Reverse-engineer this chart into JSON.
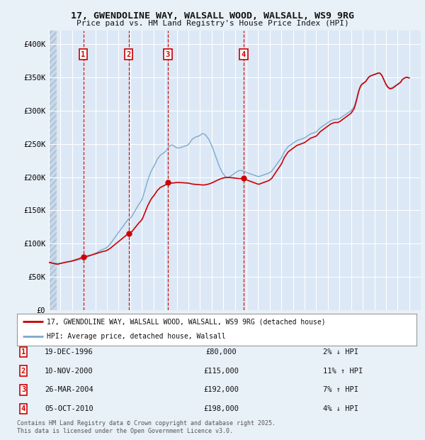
{
  "title1": "17, GWENDOLINE WAY, WALSALL WOOD, WALSALL, WS9 9RG",
  "title2": "Price paid vs. HM Land Registry's House Price Index (HPI)",
  "ylabel_ticks": [
    "£0",
    "£50K",
    "£100K",
    "£150K",
    "£200K",
    "£250K",
    "£300K",
    "£350K",
    "£400K"
  ],
  "ytick_values": [
    0,
    50000,
    100000,
    150000,
    200000,
    250000,
    300000,
    350000,
    400000
  ],
  "ylim": [
    0,
    420000
  ],
  "xlim_start": 1994.0,
  "xlim_end": 2025.99,
  "bg_color": "#e8f0f8",
  "plot_bg_color": "#dce8f5",
  "hatch_end": 1994.7,
  "grid_color": "#ffffff",
  "hpi_line_color": "#7aaad0",
  "price_line_color": "#cc0000",
  "sale_dot_color": "#cc0000",
  "dashed_line_color": "#cc0000",
  "legend_label_price": "17, GWENDOLINE WAY, WALSALL WOOD, WALSALL, WS9 9RG (detached house)",
  "legend_label_hpi": "HPI: Average price, detached house, Walsall",
  "sales": [
    {
      "num": 1,
      "date": "19-DEC-1996",
      "year": 1996.96,
      "price": 80000,
      "pct": "2%",
      "dir": "↓"
    },
    {
      "num": 2,
      "date": "10-NOV-2000",
      "year": 2000.86,
      "price": 115000,
      "pct": "11%",
      "dir": "↑"
    },
    {
      "num": 3,
      "date": "26-MAR-2004",
      "year": 2004.23,
      "price": 192000,
      "pct": "7%",
      "dir": "↑"
    },
    {
      "num": 4,
      "date": "05-OCT-2010",
      "year": 2010.76,
      "price": 198000,
      "pct": "4%",
      "dir": "↓"
    }
  ],
  "footnote1": "Contains HM Land Registry data © Crown copyright and database right 2025.",
  "footnote2": "This data is licensed under the Open Government Licence v3.0.",
  "hpi_data": [
    [
      1994.0,
      72000
    ],
    [
      1994.083,
      71800
    ],
    [
      1994.167,
      71500
    ],
    [
      1994.25,
      71200
    ],
    [
      1994.333,
      71000
    ],
    [
      1994.417,
      70800
    ],
    [
      1994.5,
      70500
    ],
    [
      1994.583,
      70300
    ],
    [
      1994.667,
      70100
    ],
    [
      1994.75,
      70000
    ],
    [
      1994.833,
      70200
    ],
    [
      1994.917,
      70500
    ],
    [
      1995.0,
      70800
    ],
    [
      1995.083,
      71000
    ],
    [
      1995.167,
      71200
    ],
    [
      1995.25,
      71500
    ],
    [
      1995.333,
      71800
    ],
    [
      1995.417,
      72000
    ],
    [
      1995.5,
      72200
    ],
    [
      1995.583,
      72400
    ],
    [
      1995.667,
      72600
    ],
    [
      1995.75,
      72800
    ],
    [
      1995.833,
      73000
    ],
    [
      1995.917,
      73200
    ],
    [
      1996.0,
      73500
    ],
    [
      1996.083,
      73800
    ],
    [
      1996.167,
      74100
    ],
    [
      1996.25,
      74500
    ],
    [
      1996.333,
      74800
    ],
    [
      1996.417,
      75100
    ],
    [
      1996.5,
      75500
    ],
    [
      1996.583,
      75800
    ],
    [
      1996.667,
      76200
    ],
    [
      1996.75,
      76600
    ],
    [
      1996.833,
      77000
    ],
    [
      1996.917,
      77400
    ],
    [
      1997.0,
      77900
    ],
    [
      1997.083,
      78400
    ],
    [
      1997.167,
      78900
    ],
    [
      1997.25,
      79500
    ],
    [
      1997.333,
      80100
    ],
    [
      1997.417,
      80700
    ],
    [
      1997.5,
      81300
    ],
    [
      1997.583,
      82000
    ],
    [
      1997.667,
      82700
    ],
    [
      1997.75,
      83400
    ],
    [
      1997.833,
      84100
    ],
    [
      1997.917,
      84800
    ],
    [
      1998.0,
      85600
    ],
    [
      1998.083,
      86400
    ],
    [
      1998.167,
      87200
    ],
    [
      1998.25,
      88000
    ],
    [
      1998.333,
      88800
    ],
    [
      1998.417,
      89600
    ],
    [
      1998.5,
      90400
    ],
    [
      1998.583,
      91000
    ],
    [
      1998.667,
      91600
    ],
    [
      1998.75,
      92200
    ],
    [
      1998.833,
      92800
    ],
    [
      1998.917,
      93400
    ],
    [
      1999.0,
      94500
    ],
    [
      1999.083,
      96000
    ],
    [
      1999.167,
      97500
    ],
    [
      1999.25,
      99000
    ],
    [
      1999.333,
      101000
    ],
    [
      1999.417,
      103000
    ],
    [
      1999.5,
      105000
    ],
    [
      1999.583,
      107000
    ],
    [
      1999.667,
      109000
    ],
    [
      1999.75,
      111000
    ],
    [
      1999.833,
      113000
    ],
    [
      1999.917,
      115000
    ],
    [
      2000.0,
      117000
    ],
    [
      2000.083,
      119000
    ],
    [
      2000.167,
      121000
    ],
    [
      2000.25,
      123000
    ],
    [
      2000.333,
      125000
    ],
    [
      2000.417,
      127000
    ],
    [
      2000.5,
      129000
    ],
    [
      2000.583,
      131000
    ],
    [
      2000.667,
      133000
    ],
    [
      2000.75,
      135000
    ],
    [
      2000.833,
      136500
    ],
    [
      2000.917,
      137500
    ],
    [
      2001.0,
      138500
    ],
    [
      2001.083,
      140000
    ],
    [
      2001.167,
      142000
    ],
    [
      2001.25,
      144500
    ],
    [
      2001.333,
      147000
    ],
    [
      2001.417,
      149500
    ],
    [
      2001.5,
      152000
    ],
    [
      2001.583,
      154500
    ],
    [
      2001.667,
      157000
    ],
    [
      2001.75,
      159500
    ],
    [
      2001.833,
      161500
    ],
    [
      2001.917,
      163500
    ],
    [
      2002.0,
      166000
    ],
    [
      2002.083,
      170000
    ],
    [
      2002.167,
      175000
    ],
    [
      2002.25,
      180000
    ],
    [
      2002.333,
      185000
    ],
    [
      2002.417,
      190000
    ],
    [
      2002.5,
      195000
    ],
    [
      2002.583,
      199000
    ],
    [
      2002.667,
      203000
    ],
    [
      2002.75,
      207000
    ],
    [
      2002.833,
      210000
    ],
    [
      2002.917,
      213000
    ],
    [
      2003.0,
      215000
    ],
    [
      2003.083,
      218000
    ],
    [
      2003.167,
      221000
    ],
    [
      2003.25,
      224000
    ],
    [
      2003.333,
      227000
    ],
    [
      2003.417,
      229000
    ],
    [
      2003.5,
      231000
    ],
    [
      2003.583,
      233000
    ],
    [
      2003.667,
      234000
    ],
    [
      2003.75,
      235000
    ],
    [
      2003.833,
      236000
    ],
    [
      2003.917,
      237000
    ],
    [
      2004.0,
      238000
    ],
    [
      2004.083,
      240000
    ],
    [
      2004.167,
      242000
    ],
    [
      2004.25,
      244000
    ],
    [
      2004.333,
      246000
    ],
    [
      2004.417,
      247000
    ],
    [
      2004.5,
      248000
    ],
    [
      2004.583,
      248500
    ],
    [
      2004.667,
      248000
    ],
    [
      2004.75,
      247000
    ],
    [
      2004.833,
      246000
    ],
    [
      2004.917,
      245000
    ],
    [
      2005.0,
      244000
    ],
    [
      2005.083,
      244000
    ],
    [
      2005.167,
      244000
    ],
    [
      2005.25,
      244000
    ],
    [
      2005.333,
      244500
    ],
    [
      2005.417,
      245000
    ],
    [
      2005.5,
      245500
    ],
    [
      2005.583,
      246000
    ],
    [
      2005.667,
      246500
    ],
    [
      2005.75,
      247000
    ],
    [
      2005.833,
      247500
    ],
    [
      2005.917,
      248000
    ],
    [
      2006.0,
      249000
    ],
    [
      2006.083,
      251000
    ],
    [
      2006.167,
      253000
    ],
    [
      2006.25,
      255000
    ],
    [
      2006.333,
      257000
    ],
    [
      2006.417,
      258000
    ],
    [
      2006.5,
      259000
    ],
    [
      2006.583,
      260000
    ],
    [
      2006.667,
      260500
    ],
    [
      2006.75,
      261000
    ],
    [
      2006.833,
      261500
    ],
    [
      2006.917,
      262000
    ],
    [
      2007.0,
      263000
    ],
    [
      2007.083,
      264000
    ],
    [
      2007.167,
      265000
    ],
    [
      2007.25,
      265500
    ],
    [
      2007.333,
      265000
    ],
    [
      2007.417,
      264000
    ],
    [
      2007.5,
      263000
    ],
    [
      2007.583,
      261000
    ],
    [
      2007.667,
      259000
    ],
    [
      2007.75,
      257000
    ],
    [
      2007.833,
      254000
    ],
    [
      2007.917,
      251000
    ],
    [
      2008.0,
      248000
    ],
    [
      2008.083,
      244000
    ],
    [
      2008.167,
      240000
    ],
    [
      2008.25,
      236000
    ],
    [
      2008.333,
      232000
    ],
    [
      2008.417,
      228000
    ],
    [
      2008.5,
      224000
    ],
    [
      2008.583,
      220000
    ],
    [
      2008.667,
      216000
    ],
    [
      2008.75,
      213000
    ],
    [
      2008.833,
      210000
    ],
    [
      2008.917,
      207000
    ],
    [
      2009.0,
      205000
    ],
    [
      2009.083,
      203000
    ],
    [
      2009.167,
      201000
    ],
    [
      2009.25,
      200000
    ],
    [
      2009.333,
      199000
    ],
    [
      2009.417,
      199000
    ],
    [
      2009.5,
      200000
    ],
    [
      2009.583,
      201000
    ],
    [
      2009.667,
      202000
    ],
    [
      2009.75,
      203000
    ],
    [
      2009.833,
      204000
    ],
    [
      2009.917,
      205000
    ],
    [
      2010.0,
      206000
    ],
    [
      2010.083,
      207000
    ],
    [
      2010.167,
      208000
    ],
    [
      2010.25,
      209000
    ],
    [
      2010.333,
      209500
    ],
    [
      2010.417,
      210000
    ],
    [
      2010.5,
      210000
    ],
    [
      2010.583,
      210000
    ],
    [
      2010.667,
      209500
    ],
    [
      2010.75,
      209000
    ],
    [
      2010.833,
      208500
    ],
    [
      2010.917,
      208000
    ],
    [
      2011.0,
      207000
    ],
    [
      2011.083,
      206500
    ],
    [
      2011.167,
      206000
    ],
    [
      2011.25,
      205500
    ],
    [
      2011.333,
      205000
    ],
    [
      2011.417,
      204500
    ],
    [
      2011.5,
      204000
    ],
    [
      2011.583,
      203500
    ],
    [
      2011.667,
      203000
    ],
    [
      2011.75,
      202500
    ],
    [
      2011.833,
      202000
    ],
    [
      2011.917,
      201500
    ],
    [
      2012.0,
      201000
    ],
    [
      2012.083,
      201000
    ],
    [
      2012.167,
      201500
    ],
    [
      2012.25,
      202000
    ],
    [
      2012.333,
      202500
    ],
    [
      2012.417,
      203000
    ],
    [
      2012.5,
      203500
    ],
    [
      2012.583,
      204000
    ],
    [
      2012.667,
      204500
    ],
    [
      2012.75,
      205000
    ],
    [
      2012.833,
      205500
    ],
    [
      2012.917,
      206000
    ],
    [
      2013.0,
      207000
    ],
    [
      2013.083,
      208000
    ],
    [
      2013.167,
      209000
    ],
    [
      2013.25,
      211000
    ],
    [
      2013.333,
      213000
    ],
    [
      2013.417,
      215000
    ],
    [
      2013.5,
      217000
    ],
    [
      2013.583,
      219000
    ],
    [
      2013.667,
      221000
    ],
    [
      2013.75,
      223000
    ],
    [
      2013.833,
      225000
    ],
    [
      2013.917,
      227000
    ],
    [
      2014.0,
      229000
    ],
    [
      2014.083,
      232000
    ],
    [
      2014.167,
      235000
    ],
    [
      2014.25,
      238000
    ],
    [
      2014.333,
      240000
    ],
    [
      2014.417,
      242000
    ],
    [
      2014.5,
      244000
    ],
    [
      2014.583,
      246000
    ],
    [
      2014.667,
      247000
    ],
    [
      2014.75,
      248000
    ],
    [
      2014.833,
      249000
    ],
    [
      2014.917,
      250000
    ],
    [
      2015.0,
      251000
    ],
    [
      2015.083,
      252000
    ],
    [
      2015.167,
      253000
    ],
    [
      2015.25,
      254000
    ],
    [
      2015.333,
      255000
    ],
    [
      2015.417,
      255500
    ],
    [
      2015.5,
      256000
    ],
    [
      2015.583,
      256500
    ],
    [
      2015.667,
      257000
    ],
    [
      2015.75,
      257500
    ],
    [
      2015.833,
      258000
    ],
    [
      2015.917,
      258500
    ],
    [
      2016.0,
      259000
    ],
    [
      2016.083,
      260000
    ],
    [
      2016.167,
      261000
    ],
    [
      2016.25,
      262000
    ],
    [
      2016.333,
      263000
    ],
    [
      2016.417,
      264000
    ],
    [
      2016.5,
      265000
    ],
    [
      2016.583,
      265500
    ],
    [
      2016.667,
      266000
    ],
    [
      2016.75,
      266500
    ],
    [
      2016.833,
      267000
    ],
    [
      2016.917,
      267500
    ],
    [
      2017.0,
      268000
    ],
    [
      2017.083,
      269500
    ],
    [
      2017.167,
      271000
    ],
    [
      2017.25,
      272500
    ],
    [
      2017.333,
      274000
    ],
    [
      2017.417,
      275000
    ],
    [
      2017.5,
      276000
    ],
    [
      2017.583,
      277000
    ],
    [
      2017.667,
      278000
    ],
    [
      2017.75,
      279000
    ],
    [
      2017.833,
      280000
    ],
    [
      2017.917,
      281000
    ],
    [
      2018.0,
      282000
    ],
    [
      2018.083,
      283000
    ],
    [
      2018.167,
      284000
    ],
    [
      2018.25,
      285000
    ],
    [
      2018.333,
      285500
    ],
    [
      2018.417,
      286000
    ],
    [
      2018.5,
      286500
    ],
    [
      2018.583,
      287000
    ],
    [
      2018.667,
      287000
    ],
    [
      2018.75,
      287000
    ],
    [
      2018.833,
      287000
    ],
    [
      2018.917,
      287500
    ],
    [
      2019.0,
      288000
    ],
    [
      2019.083,
      289000
    ],
    [
      2019.167,
      290000
    ],
    [
      2019.25,
      291000
    ],
    [
      2019.333,
      292000
    ],
    [
      2019.417,
      293000
    ],
    [
      2019.5,
      294000
    ],
    [
      2019.583,
      295000
    ],
    [
      2019.667,
      296000
    ],
    [
      2019.75,
      297000
    ],
    [
      2019.833,
      298000
    ],
    [
      2019.917,
      299000
    ],
    [
      2020.0,
      300000
    ],
    [
      2020.083,
      302000
    ],
    [
      2020.167,
      304000
    ],
    [
      2020.25,
      306000
    ],
    [
      2020.333,
      310000
    ],
    [
      2020.417,
      315000
    ],
    [
      2020.5,
      320000
    ],
    [
      2020.583,
      326000
    ],
    [
      2020.667,
      331000
    ],
    [
      2020.75,
      335000
    ],
    [
      2020.833,
      338000
    ],
    [
      2020.917,
      340000
    ],
    [
      2021.0,
      341000
    ],
    [
      2021.083,
      342000
    ],
    [
      2021.167,
      343000
    ],
    [
      2021.25,
      344000
    ],
    [
      2021.333,
      346000
    ],
    [
      2021.417,
      348000
    ],
    [
      2021.5,
      350000
    ],
    [
      2021.583,
      351000
    ],
    [
      2021.667,
      352000
    ],
    [
      2021.75,
      352500
    ],
    [
      2021.833,
      353000
    ],
    [
      2021.917,
      353500
    ],
    [
      2022.0,
      354000
    ],
    [
      2022.083,
      354500
    ],
    [
      2022.167,
      355000
    ],
    [
      2022.25,
      355500
    ],
    [
      2022.333,
      356000
    ],
    [
      2022.417,
      356000
    ],
    [
      2022.5,
      355500
    ],
    [
      2022.583,
      354000
    ],
    [
      2022.667,
      352000
    ],
    [
      2022.75,
      349000
    ],
    [
      2022.833,
      346000
    ],
    [
      2022.917,
      343000
    ],
    [
      2023.0,
      340000
    ],
    [
      2023.083,
      338000
    ],
    [
      2023.167,
      336000
    ],
    [
      2023.25,
      335000
    ],
    [
      2023.333,
      334000
    ],
    [
      2023.417,
      334000
    ],
    [
      2023.5,
      334500
    ],
    [
      2023.583,
      335000
    ],
    [
      2023.667,
      336000
    ],
    [
      2023.75,
      337000
    ],
    [
      2023.833,
      338000
    ],
    [
      2023.917,
      339000
    ],
    [
      2024.0,
      340000
    ],
    [
      2024.083,
      341000
    ],
    [
      2024.167,
      342000
    ],
    [
      2024.25,
      343000
    ],
    [
      2024.333,
      345000
    ],
    [
      2024.417,
      347000
    ],
    [
      2024.5,
      348000
    ],
    [
      2024.583,
      349000
    ],
    [
      2024.667,
      349500
    ],
    [
      2024.75,
      350000
    ],
    [
      2024.833,
      350000
    ],
    [
      2024.917,
      349500
    ],
    [
      2025.0,
      349000
    ]
  ]
}
